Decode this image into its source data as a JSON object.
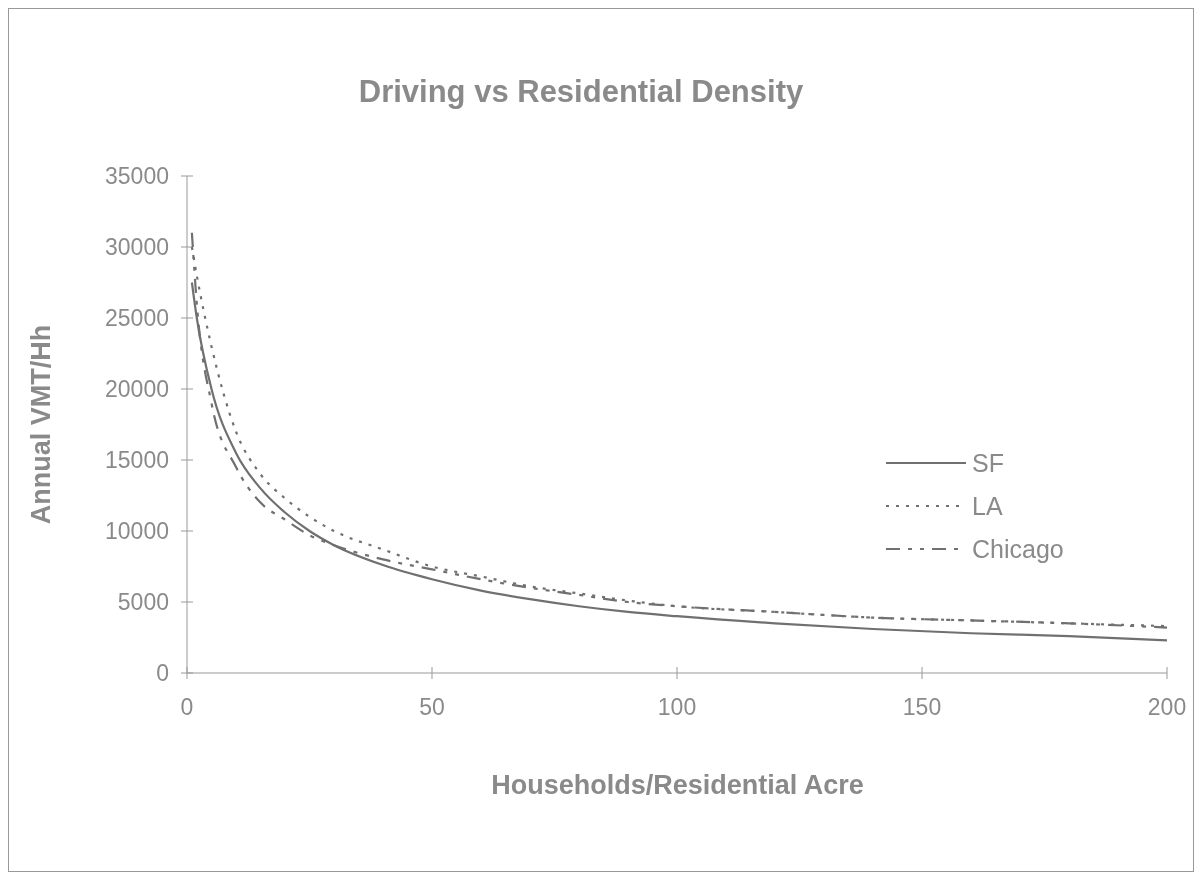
{
  "chart_data": {
    "type": "line",
    "title": "Driving vs Residential Density",
    "xlabel": "Households/Residential Acre",
    "ylabel": "Annual VMT/Hh",
    "x": [
      1,
      2,
      5,
      10,
      15,
      20,
      25,
      30,
      40,
      50,
      60,
      70,
      80,
      90,
      100,
      120,
      140,
      160,
      180,
      200
    ],
    "series": [
      {
        "name": "SF",
        "color": "#707070",
        "line_style": "solid",
        "values": [
          27500,
          25000,
          20000,
          15500,
          13000,
          11300,
          10000,
          9000,
          7600,
          6600,
          5800,
          5200,
          4700,
          4300,
          4000,
          3500,
          3100,
          2800,
          2600,
          2300
        ]
      },
      {
        "name": "LA",
        "color": "#707070",
        "line_style": "dotted",
        "values": [
          30000,
          28000,
          23000,
          17000,
          14000,
          12300,
          11000,
          10000,
          8700,
          7500,
          6800,
          6100,
          5600,
          5100,
          4700,
          4300,
          3900,
          3700,
          3500,
          3300
        ]
      },
      {
        "name": "Chicago",
        "color": "#707070",
        "line_style": "dashdot",
        "values": [
          31000,
          26000,
          19000,
          14500,
          12000,
          10800,
          9700,
          9000,
          8000,
          7300,
          6600,
          6000,
          5500,
          5000,
          4700,
          4300,
          3900,
          3700,
          3500,
          3200
        ]
      }
    ],
    "xlim": [
      0,
      200
    ],
    "xticks": [
      0,
      50,
      100,
      150,
      200
    ],
    "ylim": [
      0,
      35000
    ],
    "yticks": [
      0,
      5000,
      10000,
      15000,
      20000,
      25000,
      30000,
      35000
    ],
    "grid": false,
    "legend": "right",
    "marker": "none"
  }
}
